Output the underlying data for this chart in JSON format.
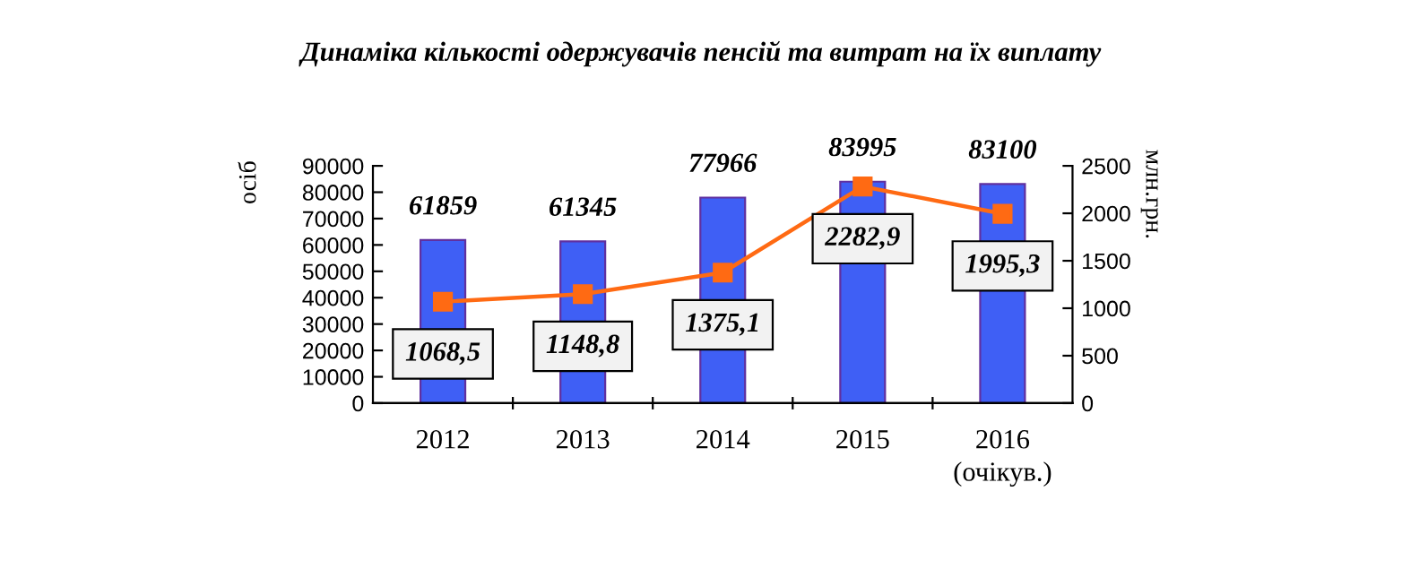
{
  "chart_data": {
    "type": "bar",
    "title": "Динаміка кількості одержувачів пенсій та витрат на їх виплату",
    "categories": [
      "2012",
      "2013",
      "2014",
      "2015",
      "2016\n(очікув.)"
    ],
    "ylabel": "осіб",
    "y2label": "млн.грн.",
    "ylim": [
      0,
      90000
    ],
    "yticks": [
      0,
      10000,
      20000,
      30000,
      40000,
      50000,
      60000,
      70000,
      80000,
      90000
    ],
    "y2lim": [
      0,
      2500
    ],
    "y2ticks": [
      0,
      500,
      1000,
      1500,
      2000,
      2500
    ],
    "marker": "square",
    "legend": false,
    "grid": false,
    "series": [
      {
        "color": "#3f5ff5",
        "values": [
          61859,
          61345,
          77966,
          83995,
          83100
        ],
        "value_labels": [
          "61859",
          "61345",
          "77966",
          "83995",
          "83100"
        ]
      },
      {
        "type": "line",
        "axis": "y2",
        "color": "#ff6a13",
        "values": [
          1068.5,
          1148.8,
          1375.1,
          2282.9,
          1995.3
        ],
        "value_labels": [
          "1068,5",
          "1148,8",
          "1375,1",
          "2282,9",
          "1995,3"
        ]
      }
    ]
  }
}
